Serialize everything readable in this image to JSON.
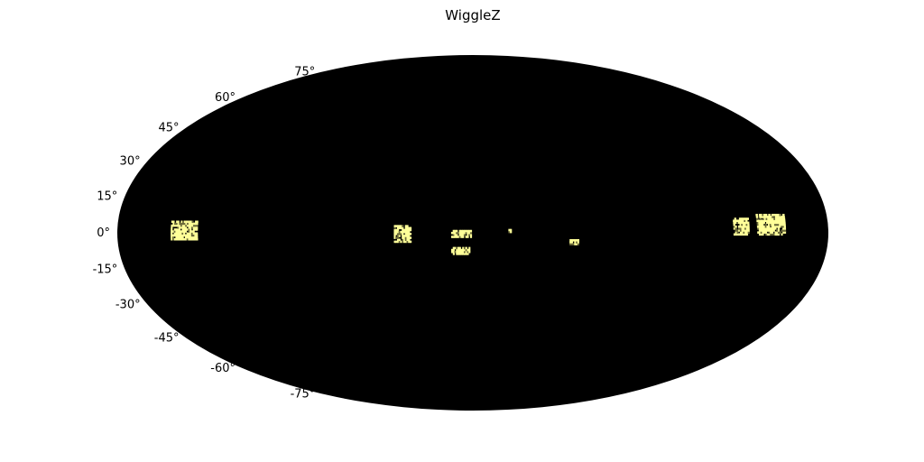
{
  "chart_data": {
    "type": "heatmap",
    "projection": "mollweide",
    "title": "WiggleZ",
    "background_color": "#000000",
    "footprint_color": "#ffff99",
    "footprint_dark_color": "#6b6a3a",
    "grid": false,
    "y_tick_labels": [
      {
        "value": 75,
        "label": "75°"
      },
      {
        "value": 60,
        "label": "60°"
      },
      {
        "value": 45,
        "label": "45°"
      },
      {
        "value": 30,
        "label": "30°"
      },
      {
        "value": 15,
        "label": "15°"
      },
      {
        "value": 0,
        "label": "0°"
      },
      {
        "value": -15,
        "label": "-15°"
      },
      {
        "value": -30,
        "label": "-30°"
      },
      {
        "value": -45,
        "label": "-45°"
      },
      {
        "value": -60,
        "label": "-60°"
      },
      {
        "value": -75,
        "label": "-75°"
      }
    ],
    "fields": [
      {
        "lon_range": [
          -153,
          -140
        ],
        "lat_range": [
          -3,
          5
        ]
      },
      {
        "lon_range": [
          -40,
          -32
        ],
        "lat_range": [
          -4,
          3
        ]
      },
      {
        "lon_range": [
          -11,
          -1
        ],
        "lat_range": [
          -2,
          1
        ]
      },
      {
        "lon_range": [
          -11,
          -2
        ],
        "lat_range": [
          -9,
          -6
        ]
      },
      {
        "lon_range": [
          18,
          19
        ],
        "lat_range": [
          0,
          1
        ]
      },
      {
        "lon_range": [
          49,
          53
        ],
        "lat_range": [
          -5,
          -3
        ]
      },
      {
        "lon_range": [
          132,
          140
        ],
        "lat_range": [
          -1,
          6
        ]
      },
      {
        "lon_range": [
          144,
          158
        ],
        "lat_range": [
          -1,
          7
        ]
      }
    ]
  }
}
